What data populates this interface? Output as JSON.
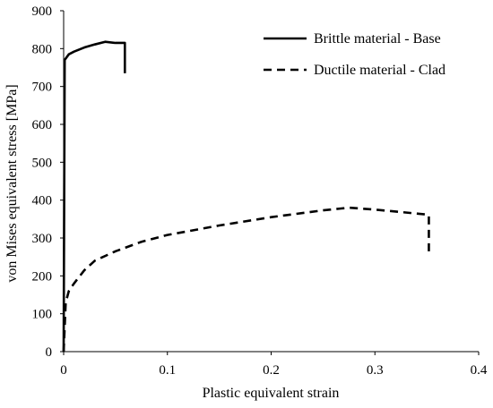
{
  "chart_data": {
    "type": "line",
    "title": "",
    "xlabel": "Plastic equivalent strain",
    "ylabel": "von Mises equivalent stress [MPa]",
    "xlim": [
      0,
      0.4
    ],
    "ylim": [
      0,
      900
    ],
    "xticks": [
      "0",
      "0.1",
      "0.2",
      "0.3",
      "0.4"
    ],
    "yticks": [
      "0",
      "100",
      "200",
      "300",
      "400",
      "500",
      "600",
      "700",
      "800",
      "900"
    ],
    "grid": false,
    "legend_position": "top-right",
    "series": [
      {
        "name": "Brittle material - Base",
        "style": "solid",
        "color": "#000000",
        "points": [
          [
            0,
            0
          ],
          [
            0.001,
            770
          ],
          [
            0.005,
            785
          ],
          [
            0.01,
            792
          ],
          [
            0.02,
            803
          ],
          [
            0.03,
            811
          ],
          [
            0.04,
            818
          ],
          [
            0.05,
            815
          ],
          [
            0.059,
            815
          ],
          [
            0.059,
            735
          ]
        ]
      },
      {
        "name": "Ductile material - Clad",
        "style": "dashed",
        "color": "#000000",
        "points": [
          [
            0,
            0
          ],
          [
            0.002,
            130
          ],
          [
            0.005,
            160
          ],
          [
            0.01,
            180
          ],
          [
            0.02,
            215
          ],
          [
            0.03,
            240
          ],
          [
            0.05,
            265
          ],
          [
            0.075,
            290
          ],
          [
            0.1,
            308
          ],
          [
            0.15,
            333
          ],
          [
            0.2,
            355
          ],
          [
            0.25,
            373
          ],
          [
            0.275,
            380
          ],
          [
            0.3,
            375
          ],
          [
            0.35,
            362
          ],
          [
            0.352,
            360
          ],
          [
            0.352,
            255
          ]
        ]
      }
    ]
  }
}
